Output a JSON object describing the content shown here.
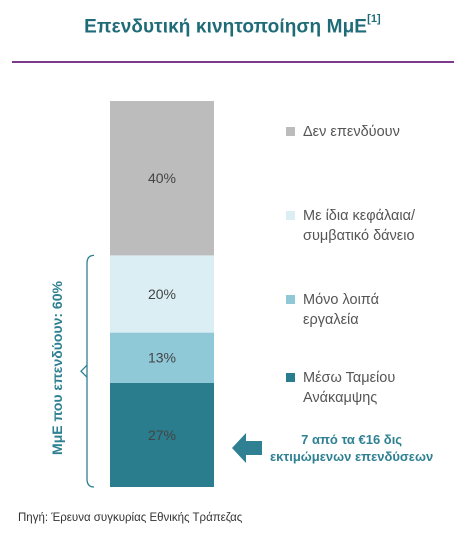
{
  "title": {
    "text": "Επενδυτική κινητοποίηση ΜμΕ",
    "footnote": "[1]"
  },
  "chart_data": {
    "type": "bar",
    "stacked": true,
    "categories": [
      ""
    ],
    "series": [
      {
        "name": "Μέσω Ταμείου Ανάκαμψης",
        "legend_label": "Μέσω Ταμείου\nΑνάκαμψης",
        "value": 27,
        "label": "27%",
        "color": "#2a7d8c"
      },
      {
        "name": "Μόνο λοιπά εργαλεία",
        "legend_label": "Μόνο λοιπά\nεργαλεία",
        "value": 13,
        "label": "13%",
        "color": "#8fc9d8"
      },
      {
        "name": "Με ίδια κεφάλαια/ συμβατικό δάνειο",
        "legend_label": "Με ίδια κεφάλαια/\nσυμβατικό δάνειο",
        "value": 20,
        "label": "20%",
        "color": "#daeef4"
      },
      {
        "name": "Δεν επενδύουν",
        "legend_label": "Δεν επενδύουν",
        "value": 40,
        "label": "40%",
        "color": "#bcbcbc"
      }
    ],
    "ylim": [
      0,
      100
    ],
    "legend_position": "right",
    "grid": false
  },
  "bracket": {
    "label": "ΜμΕ που επενδύουν: 60%",
    "color": "#2e8092"
  },
  "callout": {
    "text": "7 από τα €16 δις\nεκτιμώμενων επενδύσεων",
    "color": "#2e8092"
  },
  "source": "Πηγή: Έρευνα συγκυρίας Εθνικής Τράπεζας"
}
